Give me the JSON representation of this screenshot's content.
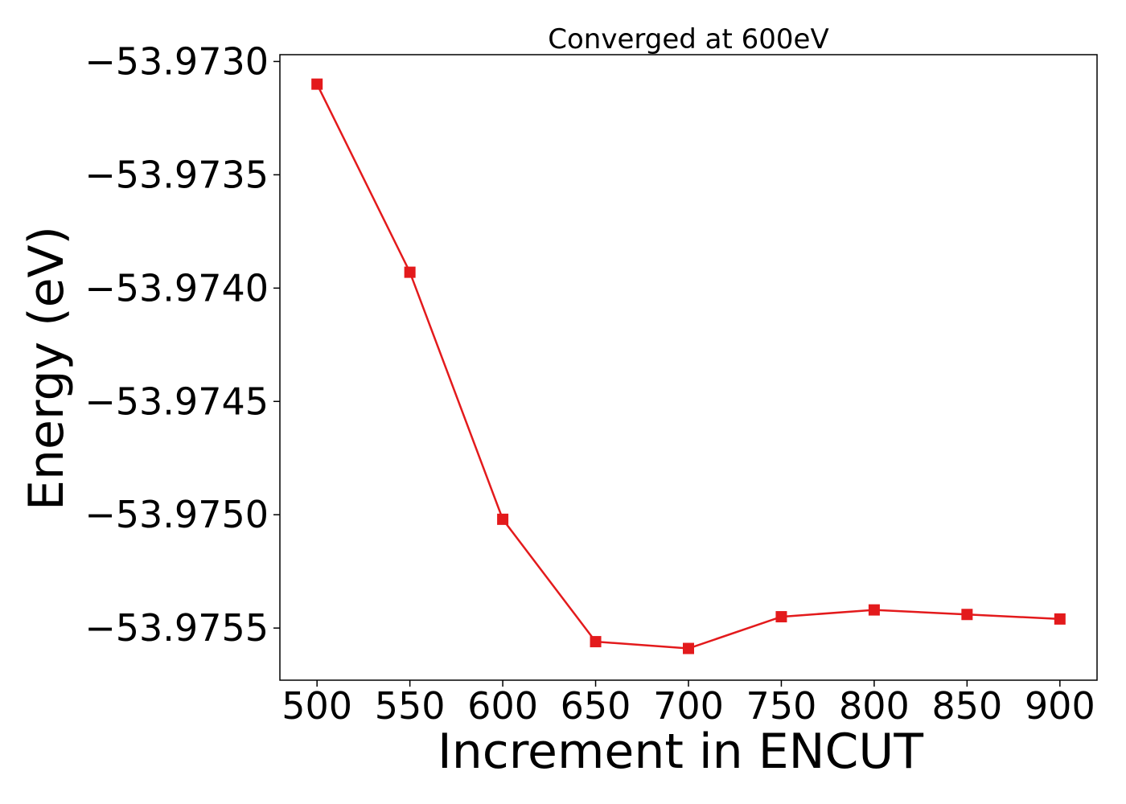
{
  "chart_data": {
    "type": "line",
    "title": "Converged at 600eV",
    "xlabel": "Increment in ENCUT",
    "ylabel": "Energy (eV)",
    "x": [
      500,
      550,
      600,
      650,
      700,
      750,
      800,
      850,
      900
    ],
    "series": [
      {
        "values": [
          -53.9731,
          -53.97393,
          -53.97502,
          -53.97556,
          -53.97559,
          -53.97545,
          -53.97542,
          -53.97544,
          -53.97546
        ],
        "color": "#e31a1c",
        "marker": "square"
      }
    ],
    "xticks": [
      "500",
      "550",
      "600",
      "650",
      "700",
      "750",
      "800",
      "850",
      "900"
    ],
    "yticks": [
      -53.973,
      -53.9735,
      -53.974,
      -53.9745,
      -53.975,
      -53.9755
    ],
    "ytick_labels": [
      "−53.9730",
      "−53.9735",
      "−53.9740",
      "−53.9745",
      "−53.9750",
      "−53.9755"
    ],
    "xlim": [
      480,
      920
    ],
    "ylim": [
      -53.97573,
      -53.97297
    ],
    "grid": false,
    "legend": "none"
  }
}
